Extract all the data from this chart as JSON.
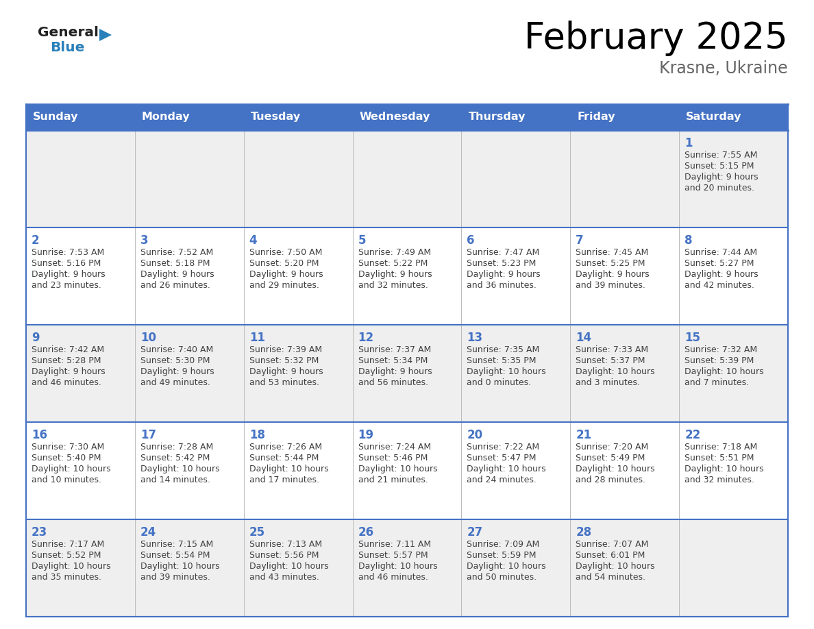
{
  "title": "February 2025",
  "subtitle": "Krasne, Ukraine",
  "days_of_week": [
    "Sunday",
    "Monday",
    "Tuesday",
    "Wednesday",
    "Thursday",
    "Friday",
    "Saturday"
  ],
  "header_bg": "#4472C4",
  "header_text": "#FFFFFF",
  "row0_bg": "#EFEFEF",
  "row1_bg": "#FFFFFF",
  "row_even_bg": "#EFEFEF",
  "row_odd_bg": "#FFFFFF",
  "cell_border_color": "#4472C4",
  "day_number_color": "#4472C4",
  "text_color": "#404040",
  "title_color": "#000000",
  "subtitle_color": "#666666",
  "logo_general_color": "#222222",
  "logo_blue_color": "#2980b9",
  "logo_triangle_color": "#2980b9",
  "calendar_data": [
    {
      "day": 1,
      "row": 0,
      "col": 6,
      "sunrise": "7:55 AM",
      "sunset": "5:15 PM",
      "dl1": "Daylight: 9 hours",
      "dl2": "and 20 minutes."
    },
    {
      "day": 2,
      "row": 1,
      "col": 0,
      "sunrise": "7:53 AM",
      "sunset": "5:16 PM",
      "dl1": "Daylight: 9 hours",
      "dl2": "and 23 minutes."
    },
    {
      "day": 3,
      "row": 1,
      "col": 1,
      "sunrise": "7:52 AM",
      "sunset": "5:18 PM",
      "dl1": "Daylight: 9 hours",
      "dl2": "and 26 minutes."
    },
    {
      "day": 4,
      "row": 1,
      "col": 2,
      "sunrise": "7:50 AM",
      "sunset": "5:20 PM",
      "dl1": "Daylight: 9 hours",
      "dl2": "and 29 minutes."
    },
    {
      "day": 5,
      "row": 1,
      "col": 3,
      "sunrise": "7:49 AM",
      "sunset": "5:22 PM",
      "dl1": "Daylight: 9 hours",
      "dl2": "and 32 minutes."
    },
    {
      "day": 6,
      "row": 1,
      "col": 4,
      "sunrise": "7:47 AM",
      "sunset": "5:23 PM",
      "dl1": "Daylight: 9 hours",
      "dl2": "and 36 minutes."
    },
    {
      "day": 7,
      "row": 1,
      "col": 5,
      "sunrise": "7:45 AM",
      "sunset": "5:25 PM",
      "dl1": "Daylight: 9 hours",
      "dl2": "and 39 minutes."
    },
    {
      "day": 8,
      "row": 1,
      "col": 6,
      "sunrise": "7:44 AM",
      "sunset": "5:27 PM",
      "dl1": "Daylight: 9 hours",
      "dl2": "and 42 minutes."
    },
    {
      "day": 9,
      "row": 2,
      "col": 0,
      "sunrise": "7:42 AM",
      "sunset": "5:28 PM",
      "dl1": "Daylight: 9 hours",
      "dl2": "and 46 minutes."
    },
    {
      "day": 10,
      "row": 2,
      "col": 1,
      "sunrise": "7:40 AM",
      "sunset": "5:30 PM",
      "dl1": "Daylight: 9 hours",
      "dl2": "and 49 minutes."
    },
    {
      "day": 11,
      "row": 2,
      "col": 2,
      "sunrise": "7:39 AM",
      "sunset": "5:32 PM",
      "dl1": "Daylight: 9 hours",
      "dl2": "and 53 minutes."
    },
    {
      "day": 12,
      "row": 2,
      "col": 3,
      "sunrise": "7:37 AM",
      "sunset": "5:34 PM",
      "dl1": "Daylight: 9 hours",
      "dl2": "and 56 minutes."
    },
    {
      "day": 13,
      "row": 2,
      "col": 4,
      "sunrise": "7:35 AM",
      "sunset": "5:35 PM",
      "dl1": "Daylight: 10 hours",
      "dl2": "and 0 minutes."
    },
    {
      "day": 14,
      "row": 2,
      "col": 5,
      "sunrise": "7:33 AM",
      "sunset": "5:37 PM",
      "dl1": "Daylight: 10 hours",
      "dl2": "and 3 minutes."
    },
    {
      "day": 15,
      "row": 2,
      "col": 6,
      "sunrise": "7:32 AM",
      "sunset": "5:39 PM",
      "dl1": "Daylight: 10 hours",
      "dl2": "and 7 minutes."
    },
    {
      "day": 16,
      "row": 3,
      "col": 0,
      "sunrise": "7:30 AM",
      "sunset": "5:40 PM",
      "dl1": "Daylight: 10 hours",
      "dl2": "and 10 minutes."
    },
    {
      "day": 17,
      "row": 3,
      "col": 1,
      "sunrise": "7:28 AM",
      "sunset": "5:42 PM",
      "dl1": "Daylight: 10 hours",
      "dl2": "and 14 minutes."
    },
    {
      "day": 18,
      "row": 3,
      "col": 2,
      "sunrise": "7:26 AM",
      "sunset": "5:44 PM",
      "dl1": "Daylight: 10 hours",
      "dl2": "and 17 minutes."
    },
    {
      "day": 19,
      "row": 3,
      "col": 3,
      "sunrise": "7:24 AM",
      "sunset": "5:46 PM",
      "dl1": "Daylight: 10 hours",
      "dl2": "and 21 minutes."
    },
    {
      "day": 20,
      "row": 3,
      "col": 4,
      "sunrise": "7:22 AM",
      "sunset": "5:47 PM",
      "dl1": "Daylight: 10 hours",
      "dl2": "and 24 minutes."
    },
    {
      "day": 21,
      "row": 3,
      "col": 5,
      "sunrise": "7:20 AM",
      "sunset": "5:49 PM",
      "dl1": "Daylight: 10 hours",
      "dl2": "and 28 minutes."
    },
    {
      "day": 22,
      "row": 3,
      "col": 6,
      "sunrise": "7:18 AM",
      "sunset": "5:51 PM",
      "dl1": "Daylight: 10 hours",
      "dl2": "and 32 minutes."
    },
    {
      "day": 23,
      "row": 4,
      "col": 0,
      "sunrise": "7:17 AM",
      "sunset": "5:52 PM",
      "dl1": "Daylight: 10 hours",
      "dl2": "and 35 minutes."
    },
    {
      "day": 24,
      "row": 4,
      "col": 1,
      "sunrise": "7:15 AM",
      "sunset": "5:54 PM",
      "dl1": "Daylight: 10 hours",
      "dl2": "and 39 minutes."
    },
    {
      "day": 25,
      "row": 4,
      "col": 2,
      "sunrise": "7:13 AM",
      "sunset": "5:56 PM",
      "dl1": "Daylight: 10 hours",
      "dl2": "and 43 minutes."
    },
    {
      "day": 26,
      "row": 4,
      "col": 3,
      "sunrise": "7:11 AM",
      "sunset": "5:57 PM",
      "dl1": "Daylight: 10 hours",
      "dl2": "and 46 minutes."
    },
    {
      "day": 27,
      "row": 4,
      "col": 4,
      "sunrise": "7:09 AM",
      "sunset": "5:59 PM",
      "dl1": "Daylight: 10 hours",
      "dl2": "and 50 minutes."
    },
    {
      "day": 28,
      "row": 4,
      "col": 5,
      "sunrise": "7:07 AM",
      "sunset": "6:01 PM",
      "dl1": "Daylight: 10 hours",
      "dl2": "and 54 minutes."
    }
  ]
}
